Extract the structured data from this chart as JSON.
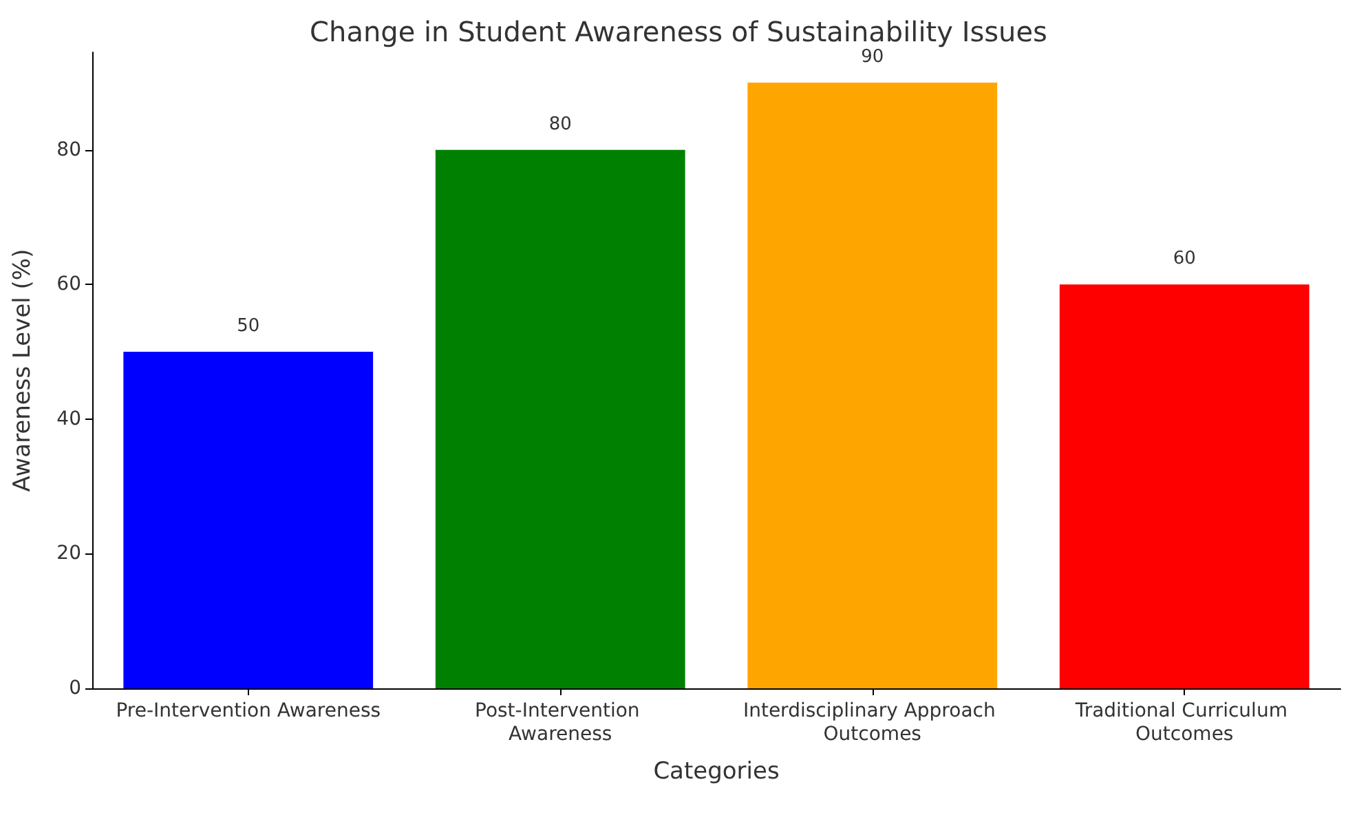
{
  "chart_data": {
    "type": "bar",
    "title": "Change in Student Awareness of Sustainability Issues",
    "xlabel": "Categories",
    "ylabel": "Awareness Level (%)",
    "categories": [
      "Pre-Intervention Awareness",
      "Post-Intervention Awareness",
      "Interdisciplinary Approach Outcomes",
      "Traditional Curriculum Outcomes"
    ],
    "values": [
      50,
      80,
      90,
      60
    ],
    "colors": [
      "#0000ff",
      "#008000",
      "#ffa500",
      "#ff0000"
    ],
    "ylim": [
      0,
      94.5
    ],
    "yticks": [
      0,
      20,
      40,
      60,
      80
    ],
    "grid": false,
    "data_labels": true
  }
}
